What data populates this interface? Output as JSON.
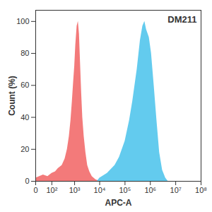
{
  "chart_data": {
    "type": "area",
    "annotation": "DM211",
    "x_label": "APC-A",
    "y_label": "Count (%)",
    "log": "x",
    "xlim": [
      0,
      100000000
    ],
    "xticks": [
      0,
      {
        "value": 100,
        "label": "10²"
      },
      {
        "value": 1000,
        "label": "10³"
      },
      {
        "value": 10000,
        "label": "10⁴"
      },
      {
        "value": 100000,
        "label": "10⁵"
      },
      {
        "value": 1000000,
        "label": "10⁶"
      },
      {
        "value": 10000000,
        "label": "10⁷"
      },
      {
        "value": 100000000,
        "label": "10⁸"
      }
    ],
    "ylim": [
      0,
      107
    ],
    "yticks": [
      0,
      20,
      40,
      60,
      80,
      100
    ],
    "grid": false,
    "series": [
      {
        "color": "#f26b6b",
        "x": [
          0,
          30,
          60,
          100,
          150,
          200,
          300,
          400,
          500,
          600,
          700,
          800,
          900,
          1000,
          1100,
          1250,
          1400,
          1550,
          1700,
          1900,
          2100,
          2400,
          2800,
          3300,
          4000,
          5000,
          7000,
          10000
        ],
        "values": [
          2,
          4,
          3,
          5,
          6,
          8,
          10,
          14,
          20,
          28,
          38,
          50,
          62,
          72,
          85,
          97,
          100,
          92,
          75,
          55,
          40,
          28,
          18,
          10,
          6,
          3,
          1,
          0
        ]
      },
      {
        "color": "#52c5ec",
        "x": [
          8000,
          10000,
          20000,
          40000,
          60000,
          100000,
          150000,
          200000,
          300000,
          400000,
          500000,
          600000,
          700000,
          900000,
          1100000,
          1400000,
          1800000,
          2300000,
          3000000,
          4000000,
          5000000
        ],
        "values": [
          0,
          2,
          5,
          10,
          15,
          25,
          38,
          50,
          70,
          88,
          97,
          100,
          95,
          90,
          80,
          60,
          38,
          18,
          7,
          2,
          0
        ]
      }
    ]
  }
}
